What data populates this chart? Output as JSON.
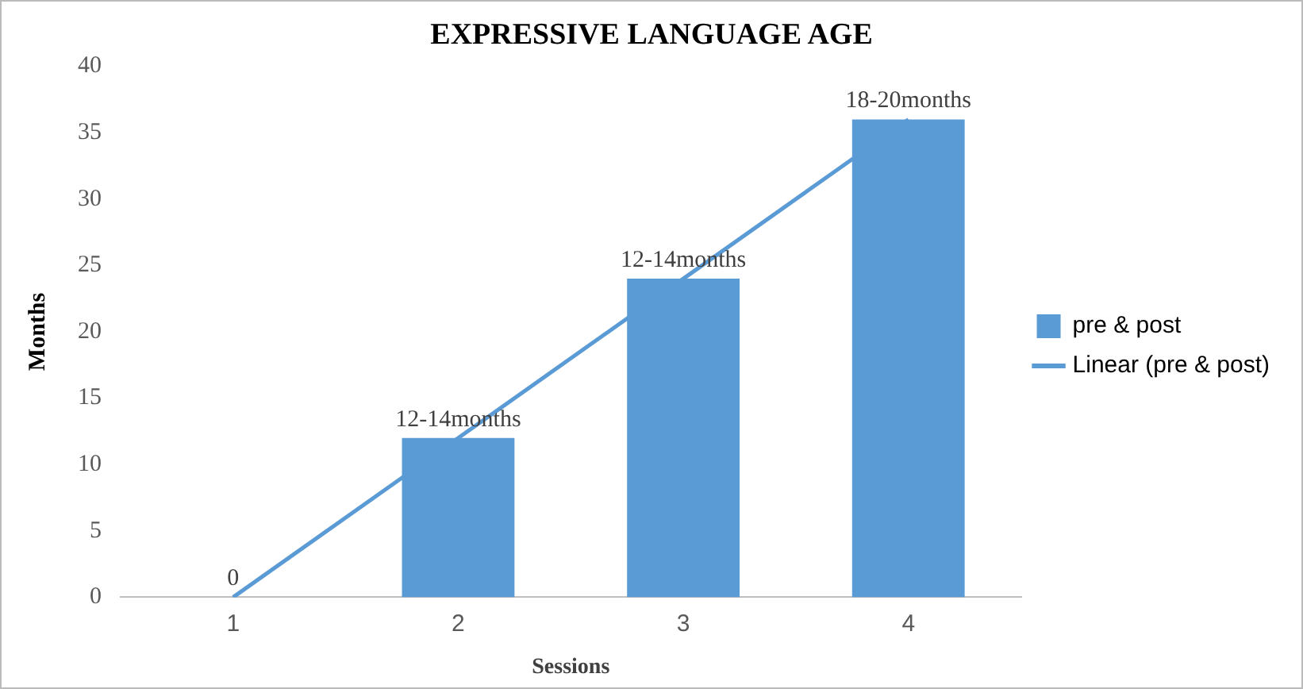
{
  "chart_data": {
    "type": "bar",
    "title": "EXPRESSIVE LANGUAGE AGE",
    "xlabel": "Sessions",
    "ylabel": "Months",
    "categories": [
      "1",
      "2",
      "3",
      "4"
    ],
    "series": [
      {
        "name": "pre & post",
        "color": "#5b9bd5",
        "values": [
          0,
          12,
          24,
          36
        ],
        "value_labels": [
          "0",
          "12-14months",
          "12-14months",
          "18-20months"
        ]
      },
      {
        "name": "Linear (pre & post)",
        "type": "line",
        "color": "#5b9bd5",
        "values": [
          0,
          12,
          24,
          36
        ]
      }
    ],
    "ylim": [
      0,
      40
    ],
    "yticks": [
      0,
      5,
      10,
      15,
      20,
      25,
      30,
      35,
      40
    ],
    "grid": false,
    "legend": "right",
    "marker": "none",
    "line_style": "solid"
  }
}
